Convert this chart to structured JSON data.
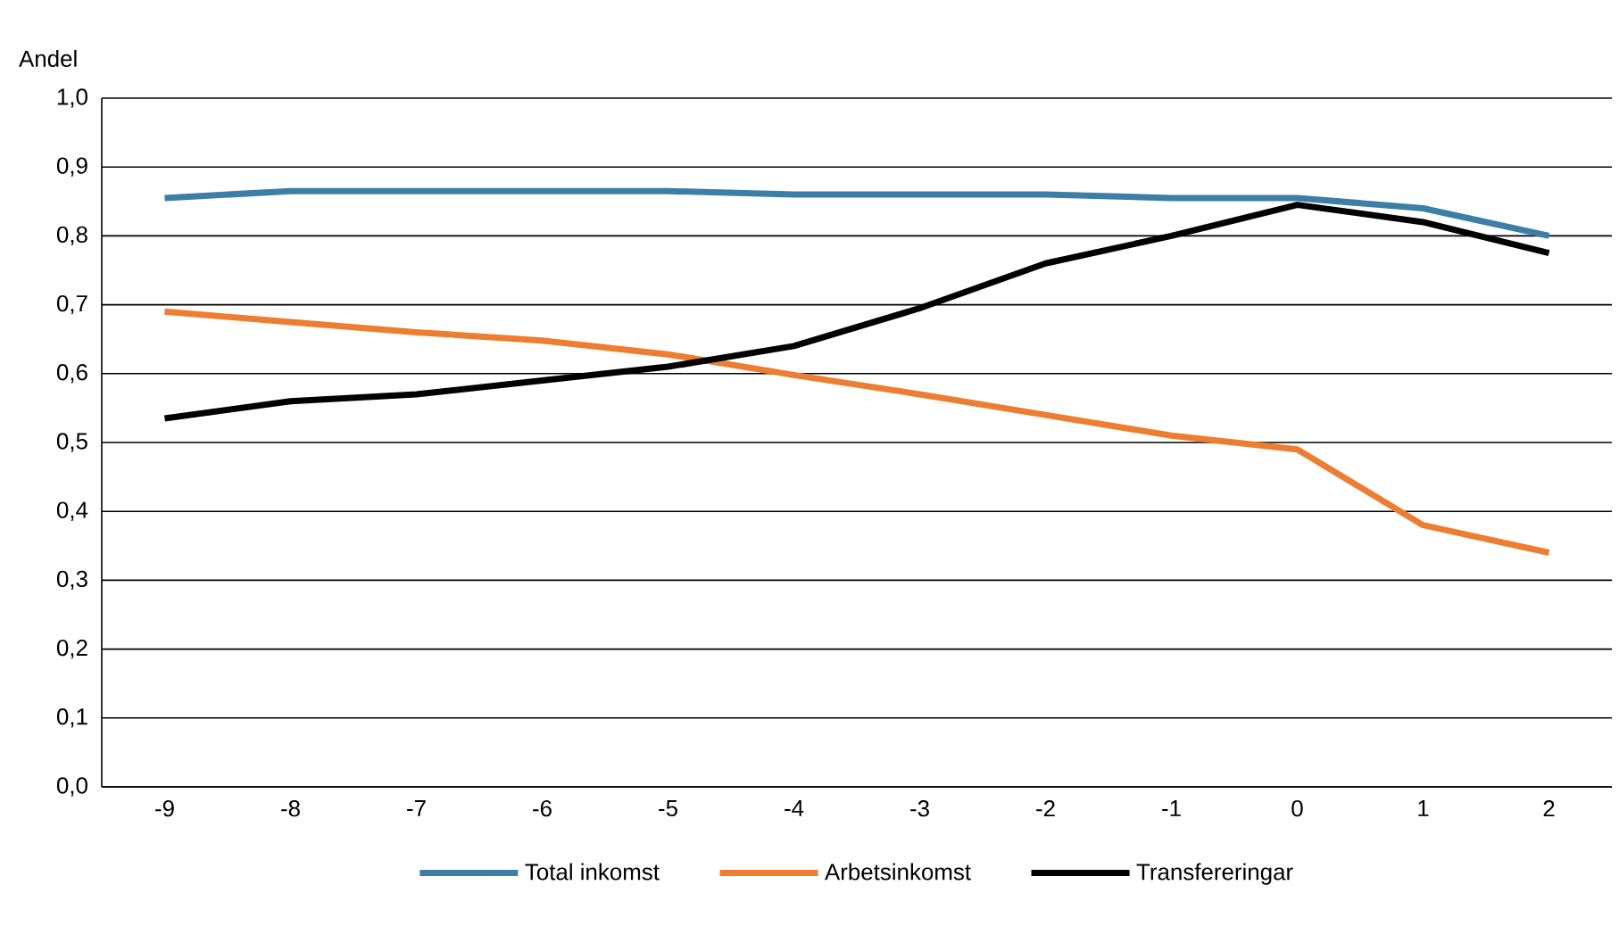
{
  "chart_data": {
    "type": "line",
    "ylabel": "Andel",
    "categories": [
      "-9",
      "-8",
      "-7",
      "-6",
      "-5",
      "-4",
      "-3",
      "-2",
      "-1",
      "0",
      "1",
      "2"
    ],
    "series": [
      {
        "name": "Total inkomst",
        "color": "#3c7ea6",
        "values": [
          0.855,
          0.865,
          0.865,
          0.865,
          0.865,
          0.86,
          0.86,
          0.86,
          0.855,
          0.855,
          0.84,
          0.8
        ]
      },
      {
        "name": "Arbetsinkomst",
        "color": "#ed7d31",
        "values": [
          0.69,
          0.675,
          0.66,
          0.648,
          0.628,
          0.598,
          0.57,
          0.54,
          0.51,
          0.49,
          0.38,
          0.34
        ]
      },
      {
        "name": "Transfereringar",
        "color": "#000000",
        "values": [
          0.535,
          0.56,
          0.57,
          0.59,
          0.61,
          0.64,
          0.695,
          0.76,
          0.8,
          0.845,
          0.82,
          0.775
        ]
      }
    ],
    "ylim": [
      0,
      1
    ],
    "yticks": [
      {
        "value": 0,
        "label": "0,0"
      },
      {
        "value": 0.1,
        "label": "0,1"
      },
      {
        "value": 0.2,
        "label": "0,2"
      },
      {
        "value": 0.3,
        "label": "0,3"
      },
      {
        "value": 0.4,
        "label": "0,4"
      },
      {
        "value": 0.5,
        "label": "0,5"
      },
      {
        "value": 0.6,
        "label": "0,6"
      },
      {
        "value": 0.7,
        "label": "0,7"
      },
      {
        "value": 0.8,
        "label": "0,8"
      },
      {
        "value": 0.9,
        "label": "0,9"
      },
      {
        "value": 1,
        "label": "1,0"
      }
    ],
    "grid": "y",
    "legend": "bottom",
    "marker": "none",
    "line_style": "solid"
  }
}
